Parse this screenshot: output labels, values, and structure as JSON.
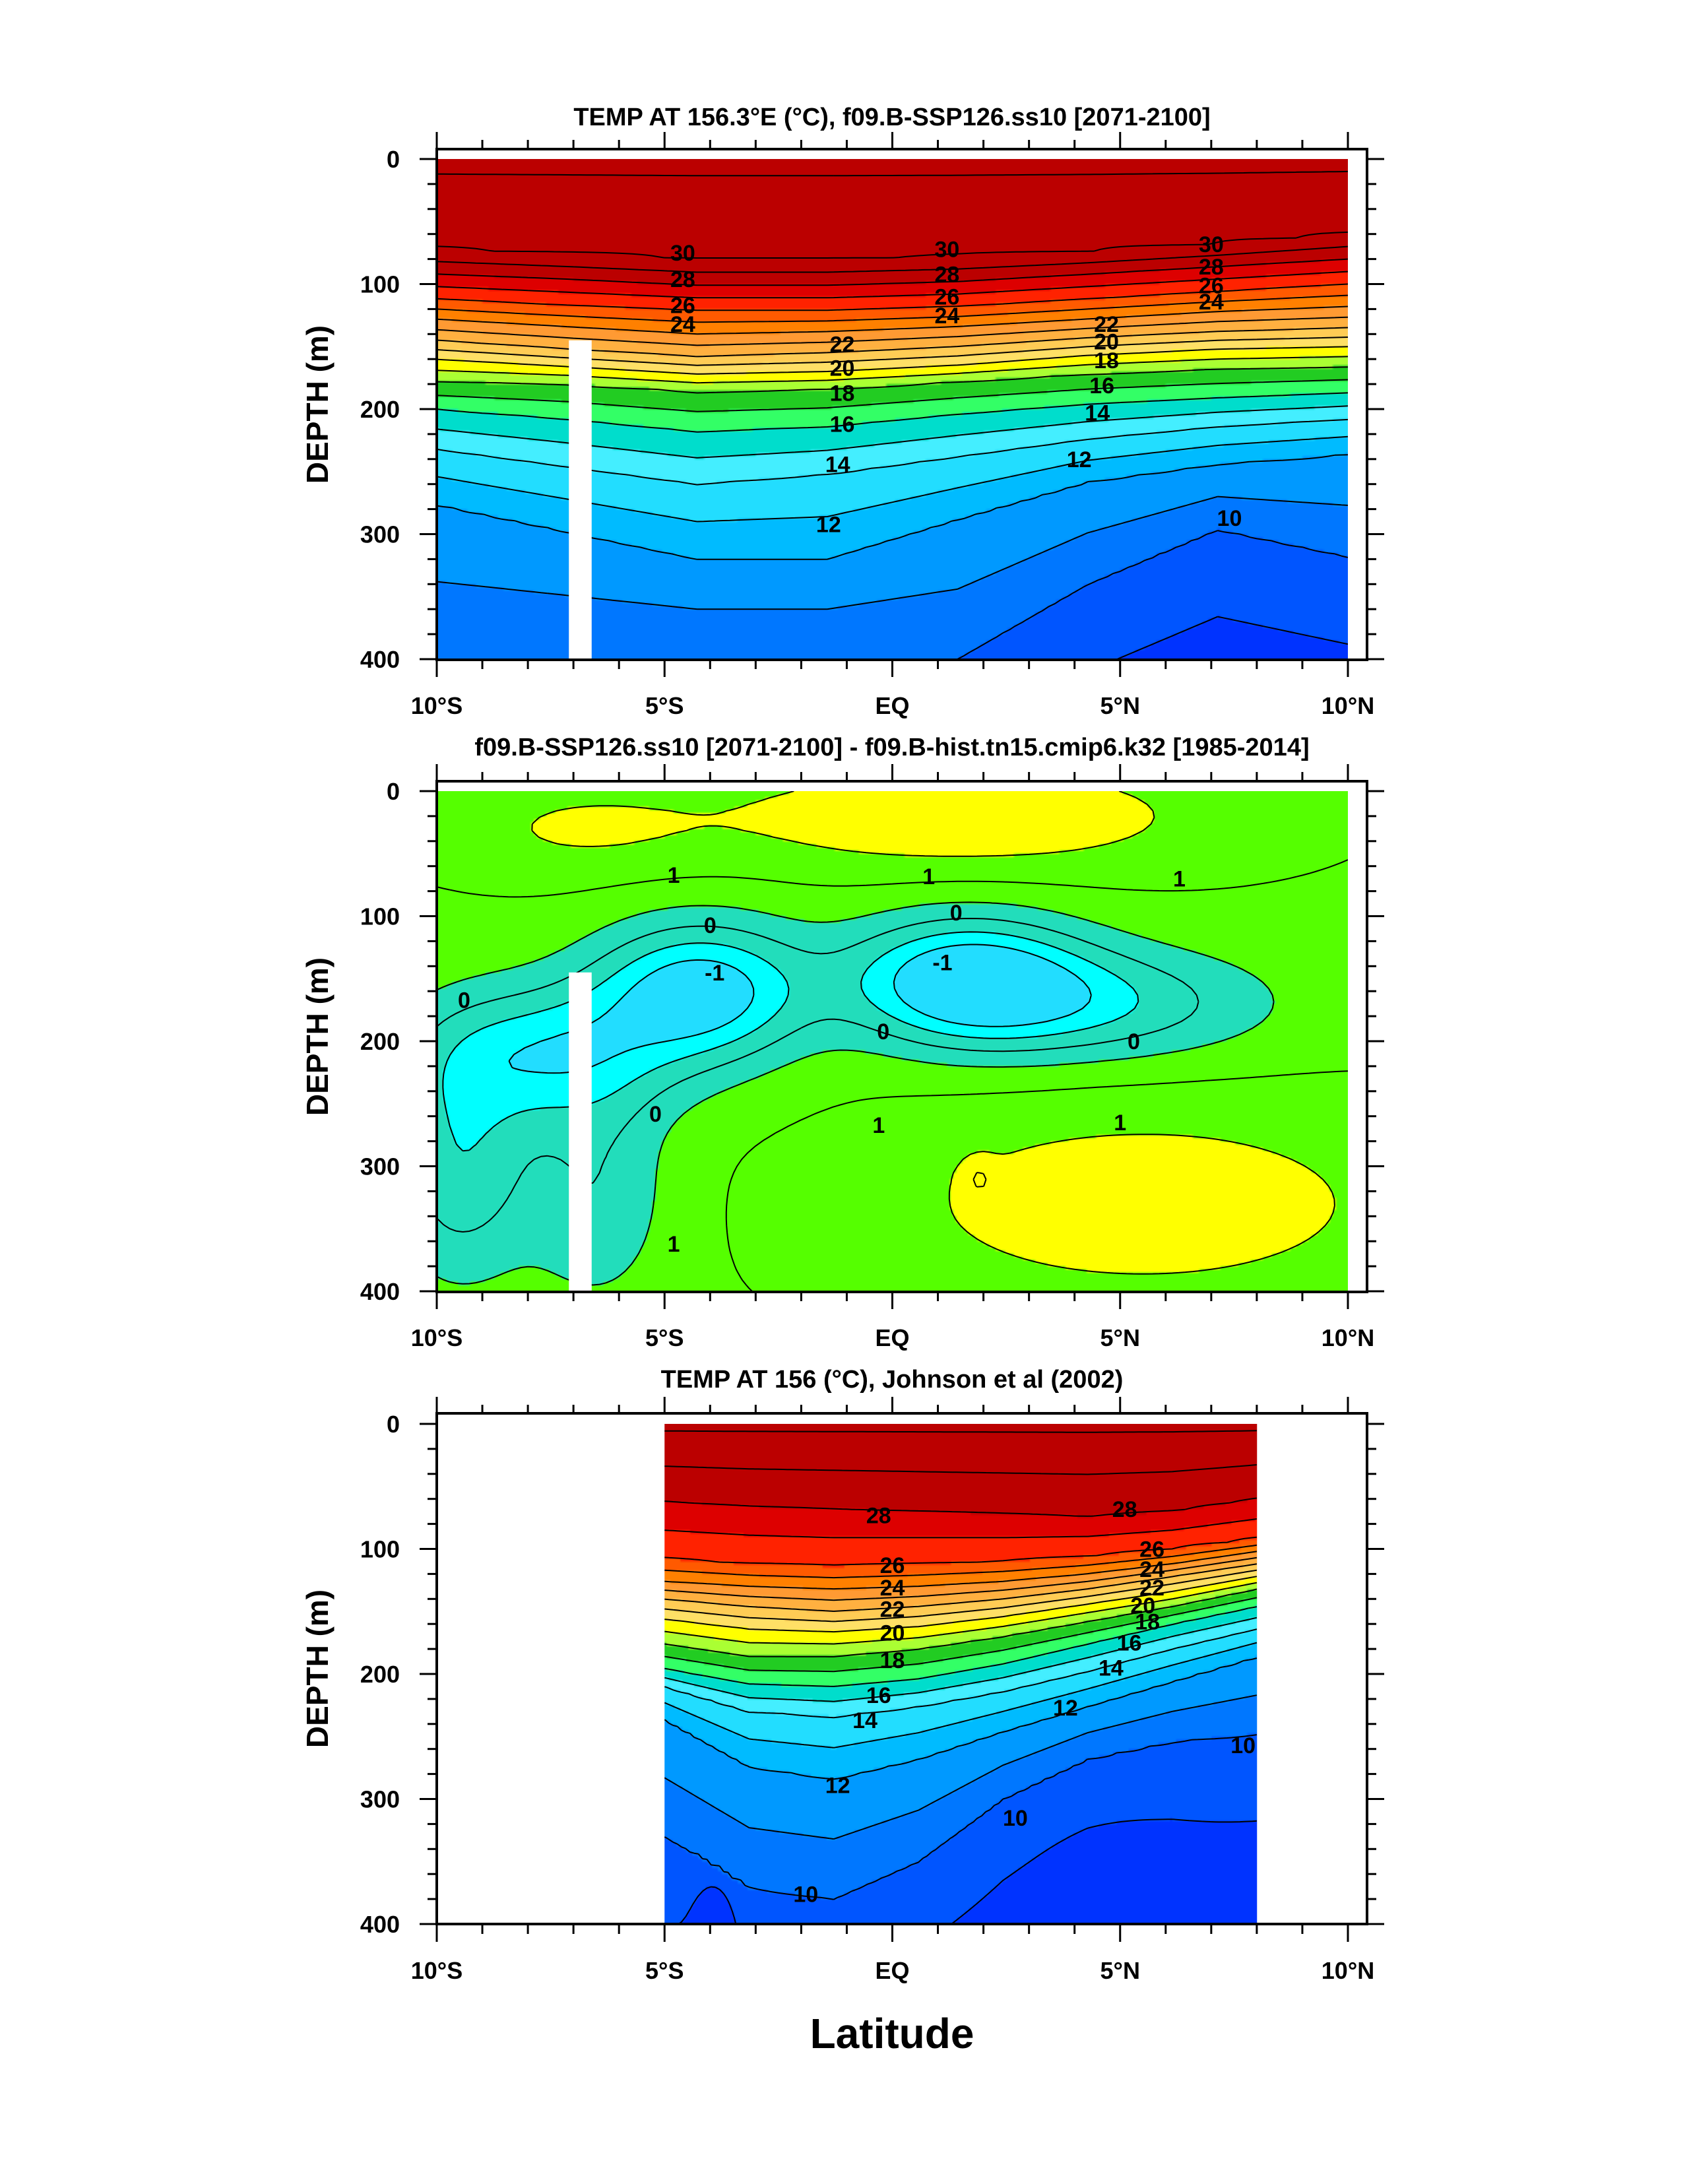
{
  "figure": {
    "xlabel": "Latitude"
  },
  "colors": {
    "background": "#ffffff",
    "contour_line": "#000000",
    "temp_scale": [
      "#0033ff",
      "#0055ff",
      "#0077ff",
      "#0099ff",
      "#00bbff",
      "#22ddff",
      "#44eeff",
      "#00ddcc",
      "#33ff66",
      "#22cc22",
      "#aaff33",
      "#ffff00",
      "#ffe066",
      "#ffcc55",
      "#ffb040",
      "#ff9a33",
      "#ff8000",
      "#ff5a00",
      "#ff2200",
      "#dd0000",
      "#bb0000"
    ],
    "diff_scale": [
      "#22ddff",
      "#00ffff",
      "#22ddbb",
      "#55ff00",
      "#ffff00",
      "#ffd93a"
    ]
  },
  "chart_data": [
    {
      "type": "contour",
      "title": "TEMP AT 156.3°E (°C), f09.B-SSP126.ss10 [2071-2100]",
      "xlabel": "",
      "ylabel": "DEPTH (m)",
      "xlim": [
        -10,
        10
      ],
      "ylim": [
        400,
        0
      ],
      "x_tick_values": [
        -10,
        -5,
        0,
        5,
        10
      ],
      "x_tick_labels": [
        "10°S",
        "5°S",
        "EQ",
        "5°N",
        "10°N"
      ],
      "y_tick_values": [
        0,
        100,
        200,
        300,
        400
      ],
      "y_tick_labels": [
        "0",
        "100",
        "200",
        "300",
        "400"
      ],
      "field": "modeled",
      "data_lat_range": [
        -10,
        10
      ],
      "mask_lat": [
        -7.1,
        -6.6
      ],
      "mask_depth_top": 145,
      "isotherm_depths": {
        "30": [
          72,
          76,
          80,
          80,
          78,
          74,
          68,
          60
        ],
        "28": [
          92,
          96,
          101,
          101,
          98,
          92,
          86,
          80
        ],
        "26": [
          112,
          117,
          121,
          121,
          118,
          112,
          106,
          100
        ],
        "24": [
          128,
          134,
          140,
          138,
          134,
          128,
          122,
          118
        ],
        "22": [
          145,
          152,
          158,
          155,
          150,
          143,
          138,
          135
        ],
        "20": [
          160,
          166,
          172,
          170,
          165,
          157,
          152,
          150
        ],
        "18": [
          178,
          180,
          186,
          184,
          178,
          172,
          168,
          166
        ],
        "16": [
          200,
          208,
          218,
          214,
          204,
          196,
          191,
          187
        ],
        "14": [
          232,
          246,
          260,
          252,
          238,
          224,
          214,
          208
        ],
        "12": [
          276,
          298,
          320,
          320,
          288,
          258,
          244,
          236
        ],
        "10": [
          400,
          400,
          400,
          400,
          400,
          340,
          296,
          318
        ]
      },
      "label_positions": [
        {
          "text": "30",
          "lat": -4.6,
          "depth": 75
        },
        {
          "text": "30",
          "lat": 1.2,
          "depth": 72
        },
        {
          "text": "30",
          "lat": 7,
          "depth": 68
        },
        {
          "text": "28",
          "lat": -4.6,
          "depth": 96
        },
        {
          "text": "28",
          "lat": 1.2,
          "depth": 92
        },
        {
          "text": "28",
          "lat": 7,
          "depth": 86
        },
        {
          "text": "26",
          "lat": -4.6,
          "depth": 117
        },
        {
          "text": "26",
          "lat": 1.2,
          "depth": 110
        },
        {
          "text": "26",
          "lat": 7,
          "depth": 101
        },
        {
          "text": "24",
          "lat": -4.6,
          "depth": 132
        },
        {
          "text": "24",
          "lat": 1.2,
          "depth": 125
        },
        {
          "text": "24",
          "lat": 7,
          "depth": 114
        },
        {
          "text": "22",
          "lat": -1.1,
          "depth": 148
        },
        {
          "text": "22",
          "lat": 4.7,
          "depth": 132
        },
        {
          "text": "20",
          "lat": -1.1,
          "depth": 167
        },
        {
          "text": "20",
          "lat": 4.7,
          "depth": 146
        },
        {
          "text": "18",
          "lat": -1.1,
          "depth": 187
        },
        {
          "text": "18",
          "lat": 4.7,
          "depth": 161
        },
        {
          "text": "16",
          "lat": -1.1,
          "depth": 212
        },
        {
          "text": "16",
          "lat": 4.6,
          "depth": 181
        },
        {
          "text": "14",
          "lat": -1.2,
          "depth": 244
        },
        {
          "text": "14",
          "lat": 4.5,
          "depth": 203
        },
        {
          "text": "12",
          "lat": -1.4,
          "depth": 292
        },
        {
          "text": "12",
          "lat": 4.1,
          "depth": 240
        },
        {
          "text": "10",
          "lat": 7.4,
          "depth": 287
        }
      ]
    },
    {
      "type": "contour",
      "title": "f09.B-SSP126.ss10 [2071-2100] - f09.B-hist.tn15.cmip6.k32 [1985-2014]",
      "xlabel": "",
      "ylabel": "DEPTH (m)",
      "xlim": [
        -10,
        10
      ],
      "ylim": [
        400,
        0
      ],
      "x_tick_values": [
        -10,
        -5,
        0,
        5,
        10
      ],
      "x_tick_labels": [
        "10°S",
        "5°S",
        "EQ",
        "5°N",
        "10°N"
      ],
      "y_tick_values": [
        0,
        100,
        200,
        300,
        400
      ],
      "y_tick_labels": [
        "0",
        "100",
        "200",
        "300",
        "400"
      ],
      "field": "difference",
      "data_lat_range": [
        -10,
        10
      ],
      "mask_lat": [
        -7.1,
        -6.6
      ],
      "mask_depth_top": 145,
      "contour_levels": [
        -1.5,
        -1,
        -0.5,
        0,
        0.5,
        1,
        1.5
      ],
      "label_positions": [
        {
          "text": "1",
          "lat": -4.8,
          "depth": 67
        },
        {
          "text": "1",
          "lat": 0.8,
          "depth": 68
        },
        {
          "text": "1",
          "lat": 6.3,
          "depth": 70
        },
        {
          "text": "0",
          "lat": -4,
          "depth": 107
        },
        {
          "text": "0",
          "lat": 1.4,
          "depth": 97
        },
        {
          "text": "0",
          "lat": -9.4,
          "depth": 167
        },
        {
          "text": "-1",
          "lat": -3.9,
          "depth": 145
        },
        {
          "text": "-1",
          "lat": 1.1,
          "depth": 137
        },
        {
          "text": "0",
          "lat": -0.2,
          "depth": 192
        },
        {
          "text": "0",
          "lat": 5.3,
          "depth": 200
        },
        {
          "text": "0",
          "lat": -5.2,
          "depth": 258
        },
        {
          "text": "1",
          "lat": -0.3,
          "depth": 267
        },
        {
          "text": "1",
          "lat": 5,
          "depth": 265
        },
        {
          "text": "1",
          "lat": -4.8,
          "depth": 362
        }
      ]
    },
    {
      "type": "contour",
      "title": "TEMP AT 156 (°C), Johnson et al (2002)",
      "xlabel": "Latitude",
      "ylabel": "DEPTH (m)",
      "xlim": [
        -10,
        10
      ],
      "ylim": [
        400,
        0
      ],
      "x_tick_values": [
        -10,
        -5,
        0,
        5,
        10
      ],
      "x_tick_labels": [
        "10°S",
        "5°S",
        "EQ",
        "5°N",
        "10°N"
      ],
      "y_tick_values": [
        0,
        100,
        200,
        300,
        400
      ],
      "y_tick_labels": [
        "0",
        "100",
        "200",
        "300",
        "400"
      ],
      "field": "observed",
      "data_lat_range": [
        -5,
        8
      ],
      "isotherm_depths": {
        "28": [
          62,
          66,
          68,
          70,
          72,
          74,
          70,
          60
        ],
        "26": [
          108,
          112,
          114,
          112,
          110,
          106,
          100,
          92
        ],
        "24": [
          126,
          130,
          132,
          130,
          126,
          120,
          112,
          102
        ],
        "22": [
          140,
          146,
          150,
          146,
          140,
          132,
          122,
          112
        ],
        "20": [
          156,
          164,
          166,
          162,
          154,
          144,
          134,
          122
        ],
        "18": [
          176,
          186,
          186,
          180,
          170,
          158,
          146,
          132
        ],
        "16": [
          196,
          208,
          210,
          204,
          192,
          176,
          160,
          146
        ],
        "14": [
          210,
          230,
          234,
          226,
          214,
          198,
          180,
          164
        ],
        "12": [
          236,
          274,
          284,
          268,
          246,
          226,
          206,
          186
        ],
        "10": [
          330,
          372,
          380,
          350,
          300,
          268,
          254,
          248
        ]
      },
      "label_positions": [
        {
          "text": "28",
          "lat": -0.3,
          "depth": 73
        },
        {
          "text": "28",
          "lat": 5.1,
          "depth": 68
        },
        {
          "text": "26",
          "lat": 0,
          "depth": 113
        },
        {
          "text": "26",
          "lat": 5.7,
          "depth": 100
        },
        {
          "text": "24",
          "lat": 0,
          "depth": 131
        },
        {
          "text": "24",
          "lat": 5.7,
          "depth": 116
        },
        {
          "text": "22",
          "lat": 0,
          "depth": 148
        },
        {
          "text": "22",
          "lat": 5.7,
          "depth": 131
        },
        {
          "text": "20",
          "lat": 0,
          "depth": 167
        },
        {
          "text": "20",
          "lat": 5.5,
          "depth": 145
        },
        {
          "text": "18",
          "lat": 0,
          "depth": 189
        },
        {
          "text": "18",
          "lat": 5.6,
          "depth": 158
        },
        {
          "text": "16",
          "lat": -0.3,
          "depth": 217
        },
        {
          "text": "16",
          "lat": 5.2,
          "depth": 175
        },
        {
          "text": "14",
          "lat": -0.6,
          "depth": 237
        },
        {
          "text": "14",
          "lat": 4.8,
          "depth": 195
        },
        {
          "text": "12",
          "lat": -1.2,
          "depth": 289
        },
        {
          "text": "12",
          "lat": 3.8,
          "depth": 227
        },
        {
          "text": "10",
          "lat": 2.7,
          "depth": 315
        },
        {
          "text": "10",
          "lat": 7.7,
          "depth": 257
        },
        {
          "text": "10",
          "lat": -1.9,
          "depth": 376
        }
      ]
    }
  ]
}
